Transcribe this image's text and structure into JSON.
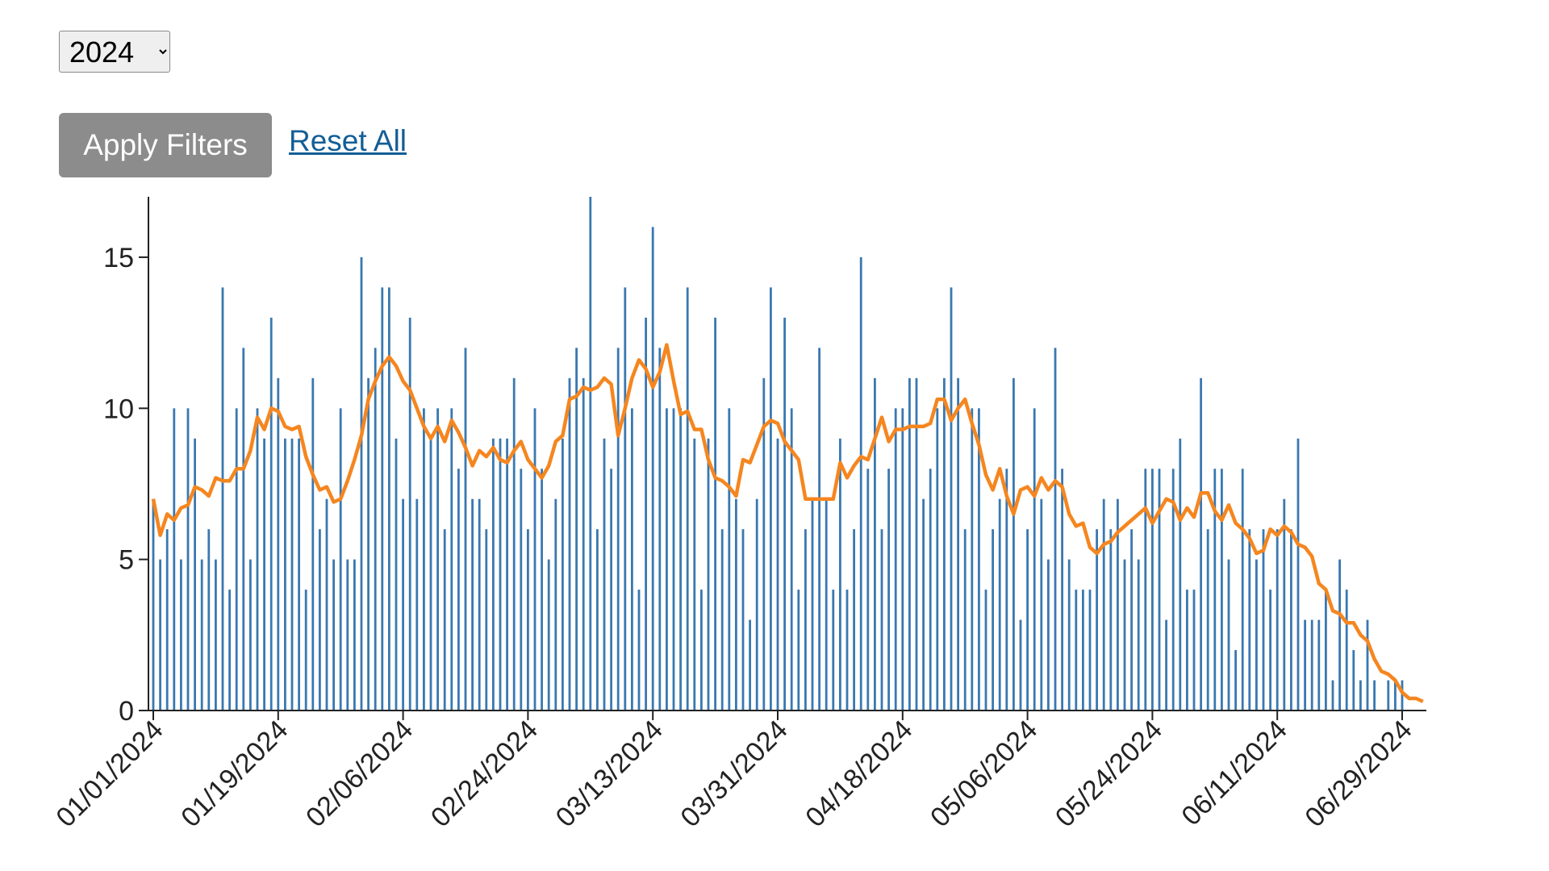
{
  "filters": {
    "year_select": {
      "selected": "2024",
      "options": [
        "2024"
      ]
    },
    "apply_label": "Apply Filters",
    "reset_label": "Reset All"
  },
  "colors": {
    "bar": "#3a78b0",
    "line": "#f5861f",
    "axis": "#222222"
  },
  "chart_data": {
    "type": "bar",
    "start_date": "2024-01-01",
    "x_tick_labels": [
      "01/01/2024",
      "01/19/2024",
      "02/06/2024",
      "02/24/2024",
      "03/13/2024",
      "03/31/2024",
      "04/18/2024",
      "05/06/2024",
      "05/24/2024",
      "06/11/2024",
      "06/29/2024"
    ],
    "y_tick_labels": [
      "0",
      "5",
      "10",
      "15"
    ],
    "ylim": [
      0,
      17
    ],
    "grid": false,
    "legend": "none",
    "series": [
      {
        "kind": "bar",
        "values": [
          7,
          5,
          6,
          10,
          5,
          10,
          9,
          5,
          6,
          5,
          14,
          4,
          10,
          12,
          5,
          10,
          9,
          13,
          11,
          9,
          9,
          9,
          4,
          11,
          6,
          7,
          5,
          10,
          5,
          5,
          15,
          11,
          12,
          14,
          14,
          9,
          7,
          13,
          7,
          10,
          9,
          10,
          6,
          10,
          8,
          12,
          7,
          7,
          6,
          9,
          9,
          9,
          11,
          8,
          6,
          10,
          8,
          5,
          7,
          9,
          11,
          12,
          11,
          17,
          6,
          9,
          8,
          12,
          14,
          10,
          4,
          13,
          16,
          12,
          10,
          10,
          10,
          14,
          9,
          4,
          9,
          13,
          6,
          10,
          7,
          6,
          3,
          7,
          11,
          14,
          9,
          13,
          10,
          4,
          6,
          7,
          12,
          7,
          4,
          9,
          4,
          6,
          15,
          8,
          11,
          6,
          8,
          10,
          10,
          11,
          11,
          7,
          8,
          10,
          11,
          14,
          11,
          6,
          10,
          10,
          4,
          6,
          7,
          8,
          11,
          3,
          6,
          10,
          7,
          5,
          12,
          8,
          5,
          4,
          4,
          4,
          6,
          7,
          6,
          7,
          5,
          6,
          5,
          8,
          8,
          8,
          3,
          8,
          9,
          4,
          4,
          11,
          6,
          8,
          8,
          5,
          2,
          8,
          6,
          5,
          6,
          4,
          6,
          7,
          6,
          9,
          3,
          3,
          3,
          4,
          1,
          5,
          4,
          2,
          1,
          3,
          1,
          0,
          1,
          1,
          1,
          0,
          0,
          0
        ]
      },
      {
        "kind": "line",
        "values": [
          7,
          5.8,
          6.5,
          6.3,
          6.7,
          6.8,
          7.4,
          7.3,
          7.1,
          7.7,
          7.6,
          7.6,
          8,
          8,
          8.6,
          9.7,
          9.3,
          10,
          9.9,
          9.4,
          9.3,
          9.4,
          8.4,
          7.8,
          7.3,
          7.4,
          6.9,
          7,
          7.6,
          8.3,
          9.1,
          10.3,
          10.9,
          11.4,
          11.7,
          11.4,
          10.9,
          10.6,
          10,
          9.4,
          9,
          9.4,
          8.9,
          9.6,
          9.2,
          8.7,
          8.1,
          8.6,
          8.4,
          8.7,
          8.3,
          8.2,
          8.6,
          8.9,
          8.3,
          8,
          7.7,
          8.1,
          8.9,
          9.1,
          10.3,
          10.4,
          10.7,
          10.6,
          10.7,
          11,
          10.8,
          9.1,
          10,
          11,
          11.6,
          11.3,
          10.7,
          11.2,
          12.1,
          10.9,
          9.8,
          9.9,
          9.3,
          9.3,
          8.3,
          7.7,
          7.6,
          7.4,
          7.1,
          8.3,
          8.2,
          8.8,
          9.4,
          9.6,
          9.5,
          8.9,
          8.6,
          8.3,
          7,
          7,
          7,
          7,
          7,
          8.2,
          7.7,
          8.1,
          8.4,
          8.3,
          9,
          9.7,
          8.9,
          9.3,
          9.3,
          9.4,
          9.4,
          9.4,
          9.5,
          10.3,
          10.3,
          9.6,
          10,
          10.3,
          9.5,
          8.8,
          7.8,
          7.3,
          8,
          7.1,
          6.5,
          7.3,
          7.4,
          7.1,
          7.7,
          7.3,
          7.6,
          7.4,
          6.5,
          6.1,
          6.2,
          5.4,
          5.2,
          5.5,
          5.6,
          5.9,
          6.1,
          6.3,
          6.5,
          6.7,
          6.2,
          6.6,
          7,
          6.9,
          6.3,
          6.7,
          6.4,
          7.2,
          7.2,
          6.6,
          6.3,
          6.8,
          6.2,
          6,
          5.7,
          5.2,
          5.3,
          6,
          5.8,
          6.1,
          5.9,
          5.5,
          5.4,
          5.1,
          4.2,
          4,
          3.3,
          3.2,
          2.9,
          2.9,
          2.5,
          2.3,
          1.7,
          1.3,
          1.2,
          1,
          0.6,
          0.4,
          0.4,
          0.3
        ]
      }
    ]
  }
}
